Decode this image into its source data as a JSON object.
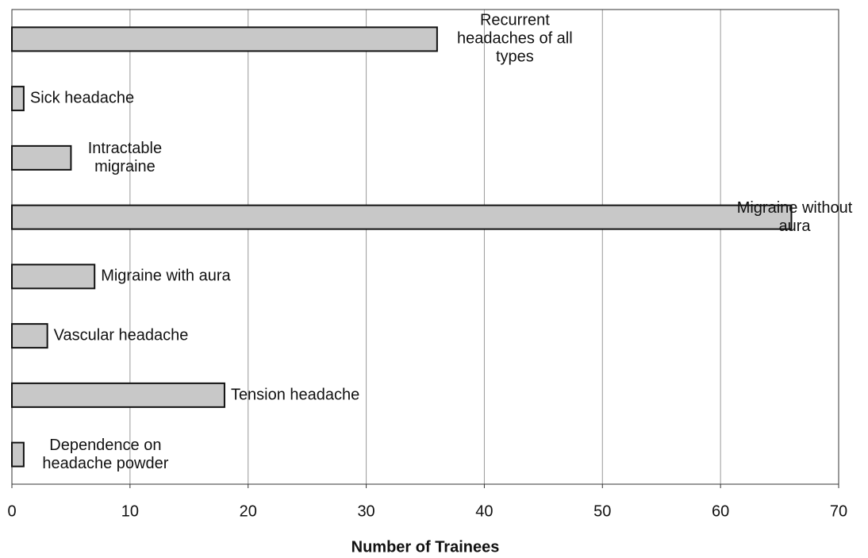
{
  "chart_data": {
    "type": "bar",
    "orientation": "horizontal",
    "x_label": "Number of Trainees",
    "categories": [
      "Recurrent headaches of all types",
      "Sick headache",
      "Intractable migraine",
      "Migraine without aura",
      "Migraine with aura",
      "Vascular headache",
      "Tension headache",
      "Dependence on headache powder"
    ],
    "values": [
      36,
      1,
      5,
      66,
      7,
      3,
      18,
      1
    ],
    "color": "#c8c8c8",
    "xlim": [
      0,
      70
    ],
    "xticks": [
      0,
      10,
      20,
      30,
      40,
      50,
      60,
      70
    ],
    "grid": true
  }
}
